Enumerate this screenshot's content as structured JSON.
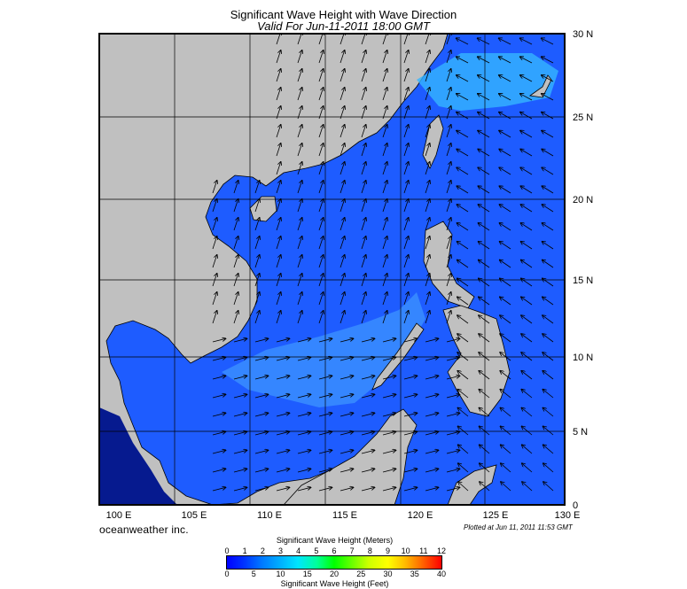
{
  "header": {
    "title": "Significant Wave Height with Wave Direction",
    "subtitle": "Valid For Jun-11-2011 18:00 GMT"
  },
  "map": {
    "longitude_labels": [
      "100 E",
      "105 E",
      "110 E",
      "115 E",
      "120 E",
      "125 E",
      "130 E"
    ],
    "latitude_labels": [
      "30 N",
      "25 N",
      "20 N",
      "15 N",
      "10 N",
      "5 N",
      "0"
    ],
    "lon_range": [
      99,
      130
    ],
    "lat_range": [
      0,
      30
    ],
    "colors": {
      "land": "#c0c0c0",
      "sea_low": "#0a3cff",
      "sea_mid": "#1e6bff",
      "sea_high": "#3aa8ff",
      "shallow_dark": "#061a8f",
      "coastline": "#000000"
    },
    "wave_direction": "south-southwest to north-northeast, turning northwest in the east"
  },
  "footer": {
    "brand": "oceanweather inc.",
    "plotted": "Plotted at Jun 11, 2011 11:53 GMT"
  },
  "legend": {
    "meters_title": "Significant Wave Height (Meters)",
    "feet_title": "Significant Wave Height (Feet)",
    "meters_ticks": [
      "0",
      "1",
      "2",
      "3",
      "4",
      "5",
      "6",
      "7",
      "8",
      "9",
      "10",
      "11",
      "12"
    ],
    "feet_ticks": [
      "0",
      "5",
      "10",
      "15",
      "20",
      "25",
      "30",
      "35",
      "40"
    ]
  }
}
